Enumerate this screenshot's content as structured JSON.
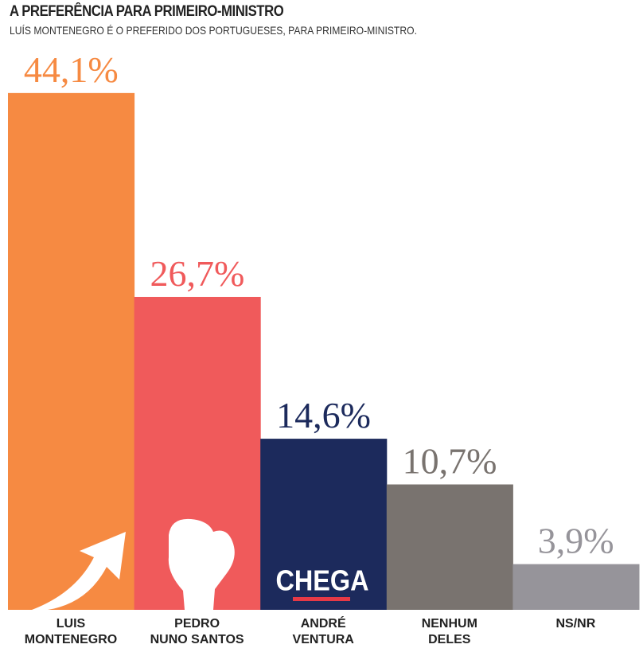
{
  "chart_data": {
    "type": "bar",
    "title": "A PREFERÊNCIA PARA PRIMEIRO-MINISTRO",
    "subtitle": "LUÍS MONTENEGRO É O PREFERIDO DOS PORTUGUESES, PARA PRIMEIRO-MINISTRO.",
    "categories": [
      "LUIS\nMONTENEGRO",
      "PEDRO\nNUNO SANTOS",
      "ANDRÉ\nVENTURA",
      "NENHUM\nDELES",
      "NS/NR"
    ],
    "values": [
      44.1,
      26.7,
      14.6,
      10.7,
      3.9
    ],
    "value_labels": [
      "44,1%",
      "26,7%",
      "14,6%",
      "10,7%",
      "3,9%"
    ],
    "colors": [
      "#f68a42",
      "#f05a5b",
      "#1c2a5c",
      "#79736f",
      "#96949a"
    ],
    "annotations": [
      "CHEGA"
    ]
  }
}
